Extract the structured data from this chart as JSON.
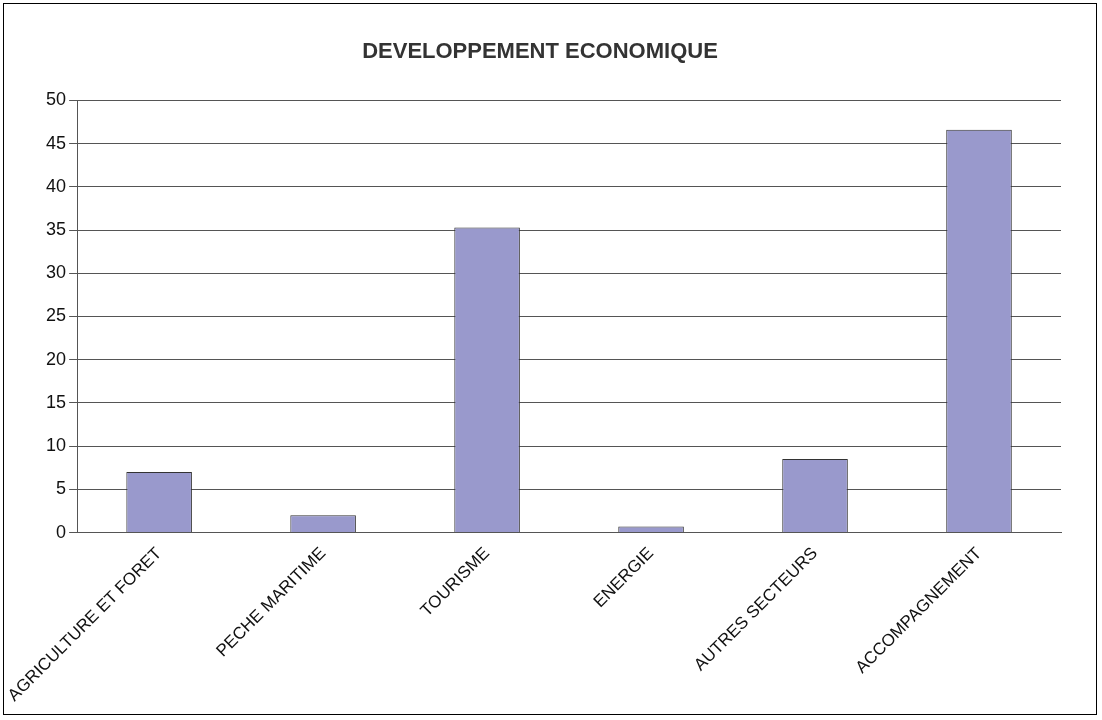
{
  "chart_data": {
    "type": "bar",
    "title": "DEVELOPPEMENT ECONOMIQUE",
    "categories": [
      "AGRICULTURE ET FORET",
      "PECHE MARITIME",
      "TOURISME",
      "ENERGIE",
      "AUTRES SECTEURS",
      "ACCOMPAGNEMENT"
    ],
    "values": [
      7,
      2,
      35.3,
      0.7,
      8.5,
      46.6
    ],
    "color": "#9999cc",
    "ylim": [
      0,
      50
    ],
    "yticks": [
      0,
      5,
      10,
      15,
      20,
      25,
      30,
      35,
      40,
      45,
      50
    ],
    "grid": "y",
    "legend": false
  }
}
